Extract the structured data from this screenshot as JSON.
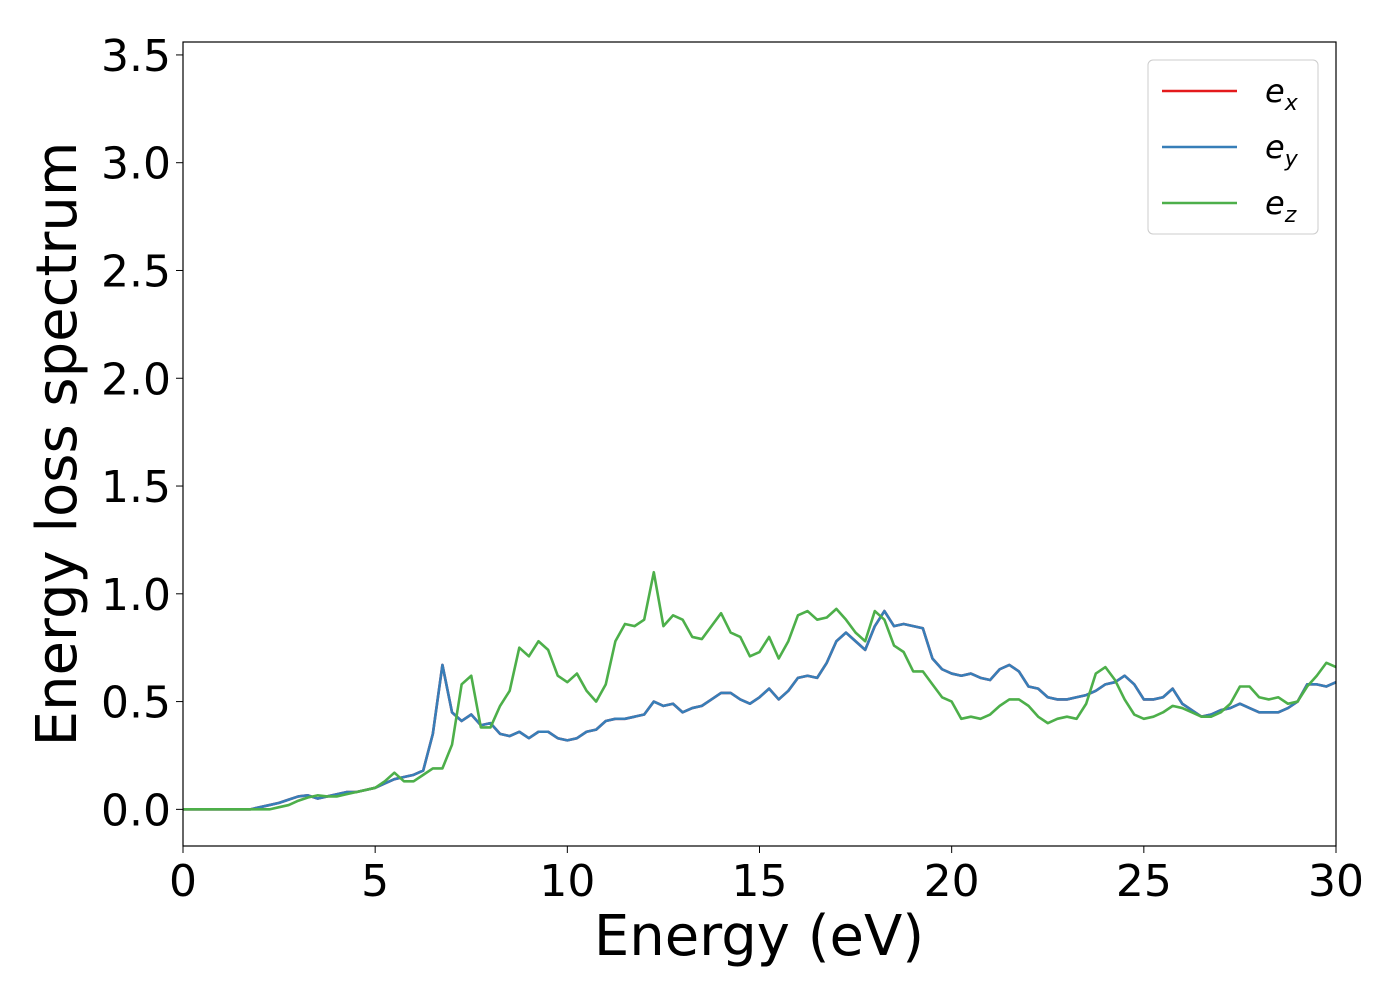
{
  "chart_data": {
    "type": "line",
    "xlabel": "Energy (eV)",
    "ylabel": "Energy loss spectrum",
    "xlim": [
      0,
      30
    ],
    "ylim": [
      -0.17,
      3.56
    ],
    "xticks": [
      0,
      5,
      10,
      15,
      20,
      25,
      30
    ],
    "yticks": [
      {
        "value": 0,
        "label": "0.0"
      },
      0.5,
      {
        "value": 1,
        "label": "1.0"
      },
      1.5,
      {
        "value": 2,
        "label": "2.0"
      },
      2.5,
      {
        "value": 3,
        "label": "3.0"
      },
      3.5
    ],
    "legend": "upper right",
    "x": [
      0,
      0.25,
      0.5,
      0.75,
      1,
      1.25,
      1.5,
      1.75,
      2,
      2.25,
      2.5,
      2.75,
      3,
      3.25,
      3.5,
      3.75,
      4,
      4.25,
      4.5,
      4.75,
      5,
      5.25,
      5.5,
      5.75,
      6,
      6.25,
      6.5,
      6.75,
      7,
      7.25,
      7.5,
      7.75,
      8,
      8.25,
      8.5,
      8.75,
      9,
      9.25,
      9.5,
      9.75,
      10,
      10.25,
      10.5,
      10.75,
      11,
      11.25,
      11.5,
      11.75,
      12,
      12.25,
      12.5,
      12.75,
      13,
      13.25,
      13.5,
      13.75,
      14,
      14.25,
      14.5,
      14.75,
      15,
      15.25,
      15.5,
      15.75,
      16,
      16.25,
      16.5,
      16.75,
      17,
      17.25,
      17.5,
      17.75,
      18,
      18.25,
      18.5,
      18.75,
      19,
      19.25,
      19.5,
      19.75,
      20,
      20.25,
      20.5,
      20.75,
      21,
      21.25,
      21.5,
      21.75,
      22,
      22.25,
      22.5,
      22.75,
      23,
      23.25,
      23.5,
      23.75,
      24,
      24.25,
      24.5,
      24.75,
      25,
      25.25,
      25.5,
      25.75,
      26,
      26.25,
      26.5,
      26.75,
      27,
      27.25,
      27.5,
      27.75,
      28,
      28.25,
      28.5,
      28.75,
      29,
      29.25,
      29.5,
      29.75,
      30
    ],
    "series": [
      {
        "name": "e_x",
        "color": "#e41a1c",
        "values": [
          0,
          0,
          0,
          0,
          0,
          0,
          0,
          0,
          0.01,
          0.02,
          0.03,
          0.045,
          0.06,
          0.065,
          0.05,
          0.06,
          0.07,
          0.08,
          0.08,
          0.09,
          0.1,
          0.12,
          0.14,
          0.15,
          0.16,
          0.18,
          0.35,
          0.67,
          0.45,
          0.41,
          0.44,
          0.39,
          0.4,
          0.35,
          0.34,
          0.36,
          0.33,
          0.36,
          0.36,
          0.33,
          0.32,
          0.33,
          0.36,
          0.37,
          0.41,
          0.42,
          0.42,
          0.43,
          0.44,
          0.5,
          0.48,
          0.49,
          0.45,
          0.47,
          0.48,
          0.51,
          0.54,
          0.54,
          0.51,
          0.49,
          0.52,
          0.56,
          0.51,
          0.55,
          0.61,
          0.62,
          0.61,
          0.68,
          0.78,
          0.82,
          0.78,
          0.74,
          0.85,
          0.92,
          0.85,
          0.86,
          0.85,
          0.84,
          0.7,
          0.65,
          0.63,
          0.62,
          0.63,
          0.61,
          0.6,
          0.65,
          0.67,
          0.64,
          0.57,
          0.56,
          0.52,
          0.51,
          0.51,
          0.52,
          0.53,
          0.55,
          0.58,
          0.59,
          0.62,
          0.58,
          0.51,
          0.51,
          0.52,
          0.56,
          0.49,
          0.46,
          0.43,
          0.44,
          0.46,
          0.47,
          0.49,
          0.47,
          0.45,
          0.45,
          0.45,
          0.47,
          0.5,
          0.58,
          0.58,
          0.57,
          0.59
        ]
      },
      {
        "name": "e_y",
        "color": "#377eb8",
        "values": [
          0,
          0,
          0,
          0,
          0,
          0,
          0,
          0,
          0.01,
          0.02,
          0.03,
          0.045,
          0.06,
          0.065,
          0.05,
          0.06,
          0.07,
          0.08,
          0.08,
          0.09,
          0.1,
          0.12,
          0.14,
          0.15,
          0.16,
          0.18,
          0.35,
          0.67,
          0.45,
          0.41,
          0.44,
          0.39,
          0.4,
          0.35,
          0.34,
          0.36,
          0.33,
          0.36,
          0.36,
          0.33,
          0.32,
          0.33,
          0.36,
          0.37,
          0.41,
          0.42,
          0.42,
          0.43,
          0.44,
          0.5,
          0.48,
          0.49,
          0.45,
          0.47,
          0.48,
          0.51,
          0.54,
          0.54,
          0.51,
          0.49,
          0.52,
          0.56,
          0.51,
          0.55,
          0.61,
          0.62,
          0.61,
          0.68,
          0.78,
          0.82,
          0.78,
          0.74,
          0.85,
          0.92,
          0.85,
          0.86,
          0.85,
          0.84,
          0.7,
          0.65,
          0.63,
          0.62,
          0.63,
          0.61,
          0.6,
          0.65,
          0.67,
          0.64,
          0.57,
          0.56,
          0.52,
          0.51,
          0.51,
          0.52,
          0.53,
          0.55,
          0.58,
          0.59,
          0.62,
          0.58,
          0.51,
          0.51,
          0.52,
          0.56,
          0.49,
          0.46,
          0.43,
          0.44,
          0.46,
          0.47,
          0.49,
          0.47,
          0.45,
          0.45,
          0.45,
          0.47,
          0.5,
          0.58,
          0.58,
          0.57,
          0.59
        ]
      },
      {
        "name": "e_z",
        "color": "#4daf4a",
        "values": [
          0,
          0,
          0,
          0,
          0,
          0,
          0,
          0,
          0,
          0,
          0.01,
          0.02,
          0.04,
          0.055,
          0.065,
          0.06,
          0.06,
          0.07,
          0.08,
          0.09,
          0.1,
          0.13,
          0.17,
          0.13,
          0.13,
          0.16,
          0.19,
          0.19,
          0.3,
          0.58,
          0.62,
          0.38,
          0.38,
          0.48,
          0.55,
          0.75,
          0.71,
          0.78,
          0.74,
          0.62,
          0.59,
          0.63,
          0.55,
          0.5,
          0.58,
          0.78,
          0.86,
          0.85,
          0.88,
          1.1,
          0.85,
          0.9,
          0.88,
          0.8,
          0.79,
          0.85,
          0.91,
          0.82,
          0.8,
          0.71,
          0.73,
          0.8,
          0.7,
          0.78,
          0.9,
          0.92,
          0.88,
          0.89,
          0.93,
          0.88,
          0.82,
          0.78,
          0.92,
          0.88,
          0.76,
          0.73,
          0.64,
          0.64,
          0.58,
          0.52,
          0.5,
          0.42,
          0.43,
          0.42,
          0.44,
          0.48,
          0.51,
          0.51,
          0.48,
          0.43,
          0.4,
          0.42,
          0.43,
          0.42,
          0.49,
          0.63,
          0.66,
          0.6,
          0.51,
          0.44,
          0.42,
          0.43,
          0.45,
          0.48,
          0.47,
          0.45,
          0.43,
          0.43,
          0.45,
          0.49,
          0.57,
          0.57,
          0.52,
          0.51,
          0.52,
          0.49,
          0.5,
          0.57,
          0.62,
          0.68,
          0.66
        ]
      }
    ]
  }
}
